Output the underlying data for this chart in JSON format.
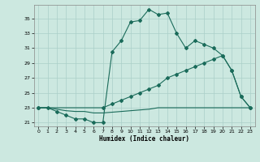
{
  "xlabel": "Humidex (Indice chaleur)",
  "bg_color": "#cce8e0",
  "grid_color": "#aacfc8",
  "line_color": "#1a6b5a",
  "xlim": [
    -0.5,
    23.5
  ],
  "ylim": [
    20.5,
    36.8
  ],
  "yticks": [
    21,
    23,
    25,
    27,
    29,
    31,
    33,
    35
  ],
  "xticks": [
    0,
    1,
    2,
    3,
    4,
    5,
    6,
    7,
    8,
    9,
    10,
    11,
    12,
    13,
    14,
    15,
    16,
    17,
    18,
    19,
    20,
    21,
    22,
    23
  ],
  "line1_x": [
    0,
    1,
    2,
    3,
    4,
    5,
    6,
    7,
    8,
    9,
    10,
    11,
    12,
    13,
    14,
    15,
    16,
    17,
    18,
    19,
    20,
    21,
    22,
    23
  ],
  "line1_y": [
    23,
    23,
    22.5,
    22,
    21.5,
    21.5,
    21,
    21,
    30.5,
    32,
    34.5,
    34.7,
    36.2,
    35.5,
    35.7,
    33,
    31,
    32,
    31.5,
    31,
    30,
    28,
    24.5,
    23
  ],
  "line2_x": [
    0,
    7,
    8,
    9,
    10,
    11,
    12,
    13,
    14,
    15,
    16,
    17,
    18,
    19,
    20,
    21,
    22,
    23
  ],
  "line2_y": [
    23,
    23,
    23.5,
    24,
    24.5,
    25,
    25.5,
    26,
    27,
    27.5,
    28,
    28.5,
    29,
    29.5,
    30,
    28,
    24.5,
    23
  ],
  "line3_x": [
    0,
    1,
    2,
    3,
    4,
    5,
    6,
    7,
    8,
    9,
    10,
    11,
    12,
    13,
    14,
    15,
    16,
    17,
    18,
    19,
    20,
    21,
    22,
    23
  ],
  "line3_y": [
    23,
    23,
    22.8,
    22.6,
    22.5,
    22.5,
    22.3,
    22.3,
    22.4,
    22.5,
    22.6,
    22.7,
    22.8,
    23,
    23,
    23,
    23,
    23,
    23,
    23,
    23,
    23,
    23,
    23
  ]
}
